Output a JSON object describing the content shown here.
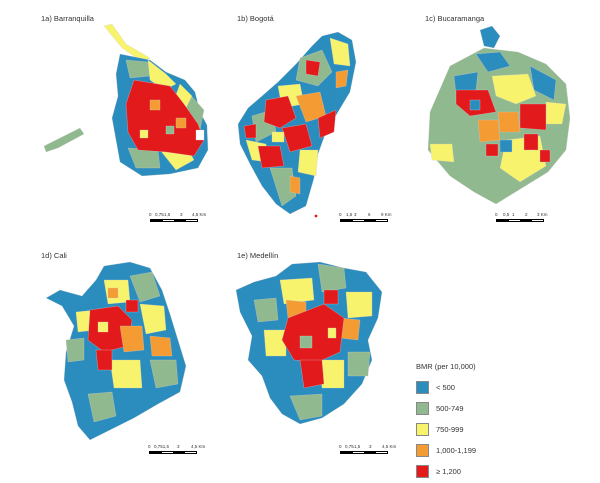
{
  "figure": {
    "panels": [
      {
        "id": "barranquilla",
        "title": "1a) Barranquilla",
        "scale_labels": [
          "0",
          "0,75",
          "1,5",
          "",
          "3",
          "4,5 Km"
        ]
      },
      {
        "id": "bogota",
        "title": "1b) Bogotá",
        "scale_labels": [
          "0",
          "1,5",
          "3",
          "",
          "6",
          "9 Km"
        ]
      },
      {
        "id": "bucaramanga",
        "title": "1c) Bucaramanga",
        "scale_labels": [
          "0",
          "0,5",
          "1",
          "",
          "2",
          "3 Km"
        ]
      },
      {
        "id": "cali",
        "title": "1d) Cali",
        "scale_labels": [
          "0",
          "0,751,5",
          "",
          "3",
          "",
          "4,5 Km"
        ]
      },
      {
        "id": "medellin",
        "title": "1e) Medellín",
        "scale_labels": [
          "0",
          "0,75",
          "1,5",
          "",
          "3",
          "4,5 Km"
        ]
      }
    ]
  },
  "legend": {
    "title": "BMR (per 10,000)",
    "items": [
      {
        "label": "< 500",
        "color": "#2b8cbe"
      },
      {
        "label": "500-749",
        "color": "#91b98f"
      },
      {
        "label": "750-999",
        "color": "#f7f36d"
      },
      {
        "label": "1,000-1,199",
        "color": "#f49b34"
      },
      {
        "label": "≥ 1,200",
        "color": "#e31a1c"
      }
    ]
  }
}
